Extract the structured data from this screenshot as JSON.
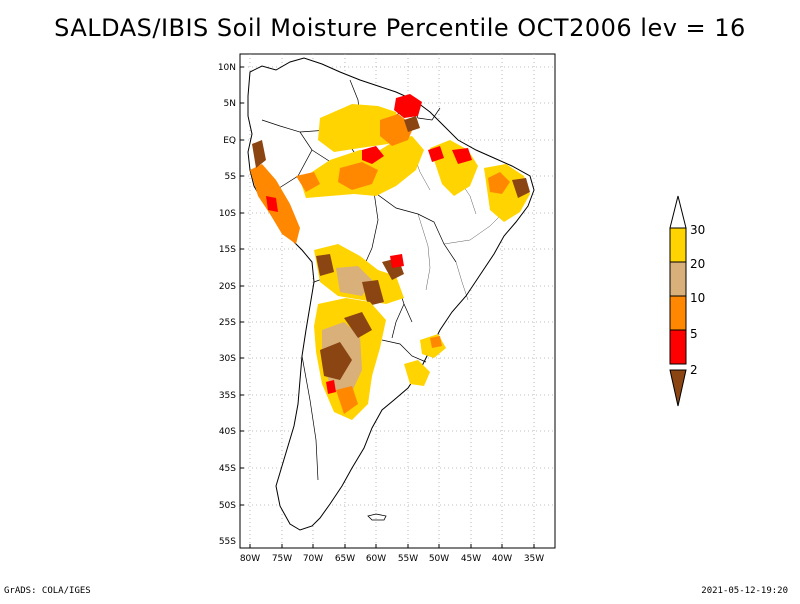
{
  "title": "SALDAS/IBIS Soil Moisture Percentile OCT2006 lev = 16",
  "footer": {
    "left": "GrADS: COLA/IGES",
    "right": "2021-05-12-19:20"
  },
  "map": {
    "lat_labels": [
      "10N",
      "5N",
      "EQ",
      "5S",
      "10S",
      "15S",
      "20S",
      "25S",
      "30S",
      "35S",
      "40S",
      "45S",
      "50S",
      "55S"
    ],
    "lon_labels": [
      "80W",
      "75W",
      "70W",
      "65W",
      "60W",
      "55W",
      "50W",
      "45W",
      "40W",
      "35W"
    ]
  },
  "legend": {
    "labels": [
      "30",
      "20",
      "10",
      "5",
      "2"
    ],
    "colors": [
      "#ffd400",
      "#d9b07a",
      "#ff8800",
      "#ff0000",
      "#8b4513"
    ]
  }
}
